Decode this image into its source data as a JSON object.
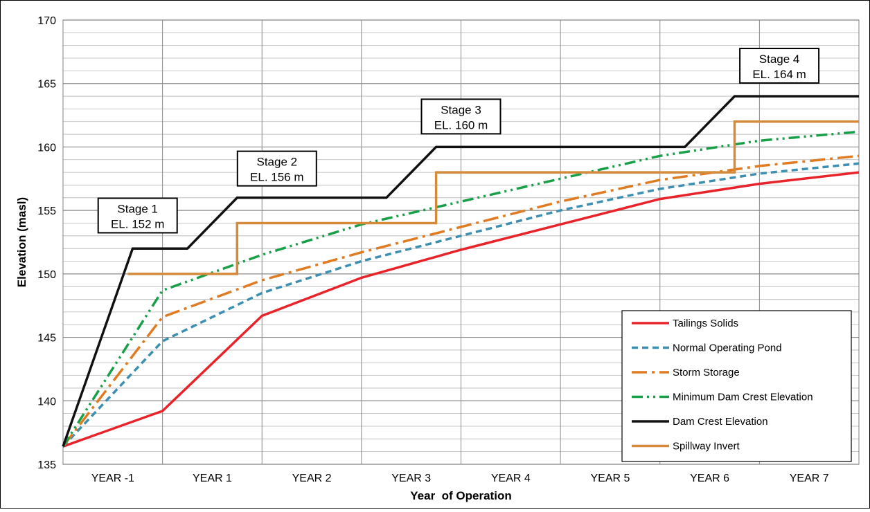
{
  "chart_data": {
    "type": "line",
    "title": "",
    "xlabel": "Year  of Operation",
    "ylabel": "Elevation (masl)",
    "categories": [
      "YEAR -1",
      "YEAR 1",
      "YEAR 2",
      "YEAR 3",
      "YEAR 4",
      "YEAR 5",
      "YEAR 6",
      "YEAR 7"
    ],
    "xlim": [
      0,
      8
    ],
    "ylim": [
      135,
      170
    ],
    "yticks": [
      135,
      140,
      145,
      150,
      155,
      160,
      165,
      170
    ],
    "ytick_labels": [
      "135",
      "140",
      "145",
      "150",
      "155",
      "160",
      "165",
      "170"
    ],
    "minor_gridline_step": 1,
    "grid": true,
    "legend_position": "bottom-right",
    "series": [
      {
        "name": "Tailings Solids",
        "color": "#e8232a",
        "dash": "solid",
        "points": [
          [
            0,
            136.4
          ],
          [
            1,
            139.2
          ],
          [
            2,
            146.7
          ],
          [
            3,
            149.7
          ],
          [
            4,
            151.9
          ],
          [
            5,
            153.9
          ],
          [
            6,
            155.9
          ],
          [
            7,
            157.1
          ],
          [
            8,
            158.0
          ]
        ]
      },
      {
        "name": "Normal Operating Pond",
        "color": "#3c8fb0",
        "dash": "dash",
        "points": [
          [
            0,
            136.4
          ],
          [
            1,
            144.7
          ],
          [
            2,
            148.5
          ],
          [
            3,
            151.0
          ],
          [
            4,
            153.0
          ],
          [
            5,
            155.0
          ],
          [
            6,
            156.7
          ],
          [
            7,
            157.9
          ],
          [
            8,
            158.7
          ]
        ]
      },
      {
        "name": "Storm Storage",
        "color": "#e07b22",
        "dash": "dashdot",
        "points": [
          [
            0,
            136.4
          ],
          [
            1,
            146.6
          ],
          [
            2,
            149.5
          ],
          [
            3,
            151.7
          ],
          [
            4,
            153.7
          ],
          [
            5,
            155.7
          ],
          [
            6,
            157.4
          ],
          [
            7,
            158.5
          ],
          [
            8,
            159.3
          ]
        ]
      },
      {
        "name": "Minimum Dam Crest Elevation",
        "color": "#18a048",
        "dash": "dashdotdot",
        "points": [
          [
            0,
            136.4
          ],
          [
            1,
            148.7
          ],
          [
            2,
            151.5
          ],
          [
            3,
            153.9
          ],
          [
            4,
            155.7
          ],
          [
            5,
            157.5
          ],
          [
            6,
            159.3
          ],
          [
            7,
            160.5
          ],
          [
            8,
            161.2
          ]
        ]
      },
      {
        "name": "Dam Crest Elevation",
        "color": "#111111",
        "dash": "solid",
        "points": [
          [
            0,
            136.4
          ],
          [
            0.7,
            152
          ],
          [
            1.25,
            152
          ],
          [
            1.75,
            156
          ],
          [
            3.25,
            156
          ],
          [
            3.75,
            160
          ],
          [
            6.25,
            160
          ],
          [
            6.75,
            164
          ],
          [
            8,
            164
          ]
        ]
      },
      {
        "name": "Spillway Invert",
        "color": "#d48a3a",
        "dash": "solid",
        "points": [
          [
            0.65,
            150
          ],
          [
            1.75,
            150
          ],
          [
            1.75,
            154
          ],
          [
            3.75,
            154
          ],
          [
            3.75,
            158
          ],
          [
            6.75,
            158
          ],
          [
            6.75,
            162
          ],
          [
            8,
            162
          ]
        ]
      }
    ],
    "annotations": [
      {
        "line1": "Stage 1",
        "line2": "EL. 152 m",
        "x": 0.75,
        "y": 154.6
      },
      {
        "line1": "Stage 2",
        "line2": "EL. 156 m",
        "x": 2.15,
        "y": 158.3
      },
      {
        "line1": "Stage 3",
        "line2": "EL. 160 m",
        "x": 4.0,
        "y": 162.4
      },
      {
        "name": "stage-4",
        "line1": "Stage 4",
        "line2": "EL. 164 m",
        "x": 7.2,
        "y": 166.4
      }
    ]
  }
}
